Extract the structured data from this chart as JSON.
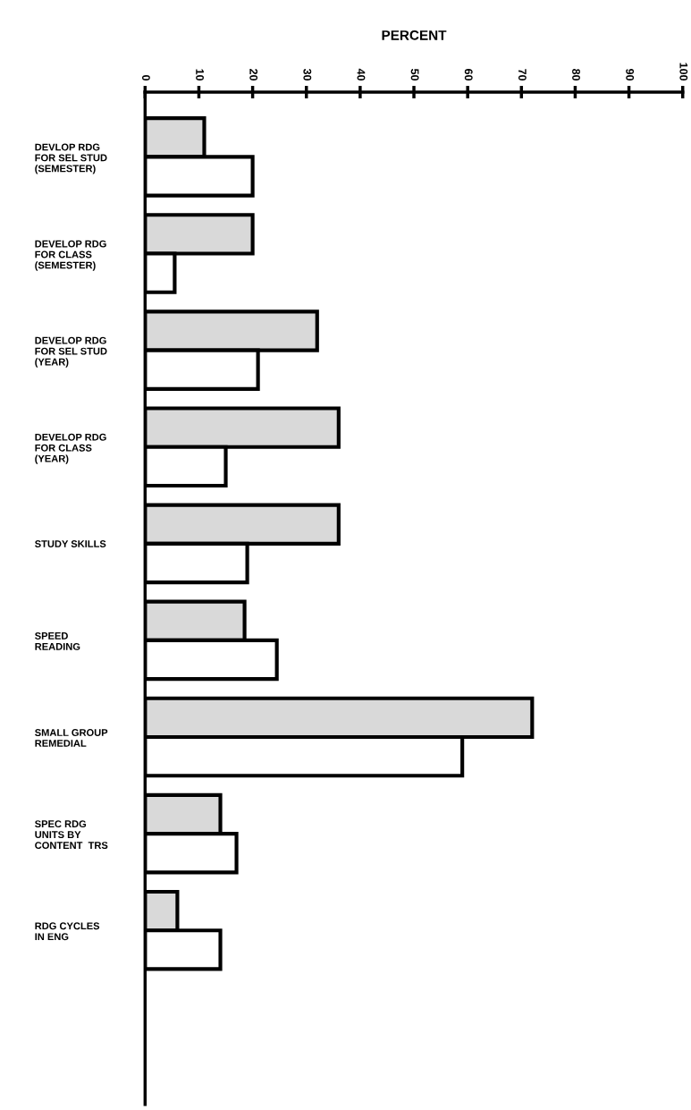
{
  "chart_data": {
    "type": "bar",
    "orientation": "horizontal",
    "xlabel": "PERCENT",
    "categories": [
      "DEVLOP RDG\nFOR SEL STUD\n(SEMESTER)",
      "DEVELOP RDG\nFOR CLASS\n(SEMESTER)",
      "DEVELOP RDG\nFOR SEL STUD\n(YEAR)",
      "DEVELOP RDG\nFOR CLASS\n(YEAR)",
      "STUDY SKILLS",
      "SPEED\nREADING",
      "SMALL GROUP\nREMEDIAL",
      "SPEC RDG\nUNITS BY\nCONTENT  TRS",
      "RDG CYCLES\nIN ENG"
    ],
    "series": [
      {
        "color": "#d9d9d9",
        "values": [
          11,
          20,
          32,
          36,
          36,
          18.5,
          72,
          14,
          6
        ]
      },
      {
        "color": "#ffffff",
        "values": [
          20,
          5.5,
          21,
          15,
          19,
          24.5,
          59,
          17,
          14
        ]
      }
    ],
    "xlim": [
      0,
      100
    ],
    "xticks": [
      0,
      10,
      20,
      30,
      40,
      50,
      60,
      70,
      80,
      90,
      100
    ],
    "grid": false,
    "legend": false
  }
}
